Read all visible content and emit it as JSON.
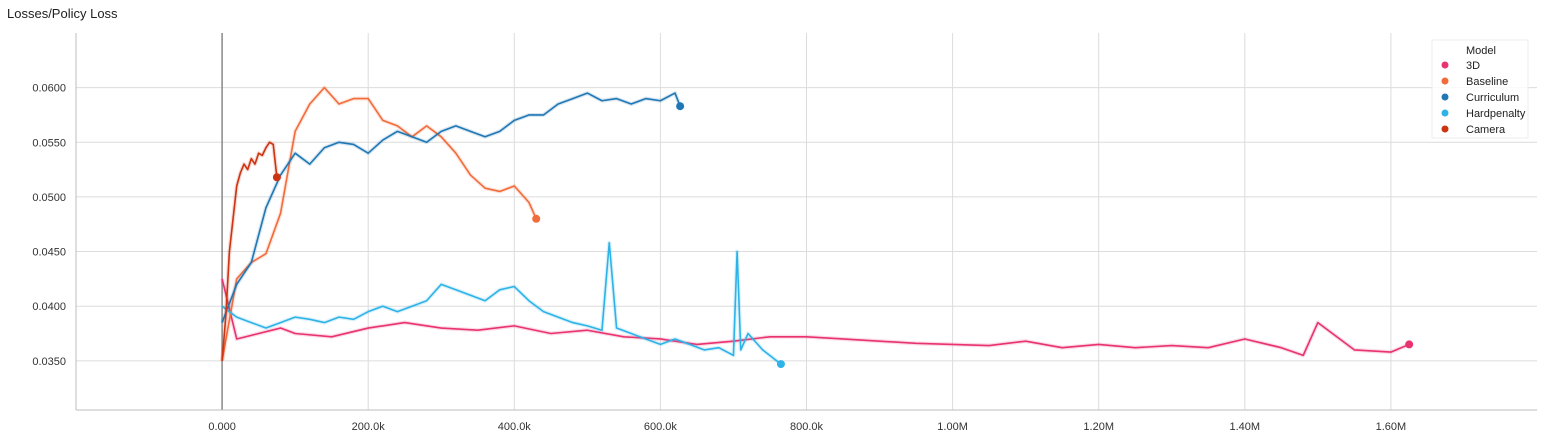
{
  "chart_data": {
    "type": "line",
    "title": "Losses/Policy Loss",
    "xlabel": "",
    "ylabel": "",
    "xlim": [
      -200000,
      1800000
    ],
    "ylim": [
      0.0305,
      0.065
    ],
    "grid": true,
    "legend": "top-right",
    "x_ticks": [
      0,
      200000,
      400000,
      600000,
      800000,
      1000000,
      1200000,
      1400000,
      1600000
    ],
    "x_tick_labels": [
      "0.000",
      "200.0k",
      "400.0k",
      "600.0k",
      "800.0k",
      "1.00M",
      "1.20M",
      "1.40M",
      "1.60M"
    ],
    "y_ticks": [
      0.035,
      0.04,
      0.045,
      0.05,
      0.055,
      0.06
    ],
    "y_tick_labels": [
      "0.0350",
      "0.0400",
      "0.0450",
      "0.0500",
      "0.0550",
      "0.0600"
    ],
    "legend_title": "Model",
    "series": [
      {
        "name": "3D",
        "color": "#e8336e",
        "x": [
          0,
          20000,
          50000,
          80000,
          100000,
          150000,
          200000,
          250000,
          300000,
          350000,
          400000,
          450000,
          500000,
          550000,
          600000,
          650000,
          700000,
          750000,
          800000,
          850000,
          900000,
          950000,
          1000000,
          1050000,
          1100000,
          1150000,
          1200000,
          1250000,
          1300000,
          1350000,
          1400000,
          1450000,
          1480000,
          1500000,
          1550000,
          1600000,
          1625000
        ],
        "y": [
          0.0425,
          0.037,
          0.0375,
          0.038,
          0.0375,
          0.0372,
          0.038,
          0.0385,
          0.038,
          0.0378,
          0.0382,
          0.0375,
          0.0378,
          0.0372,
          0.037,
          0.0365,
          0.0368,
          0.0372,
          0.0372,
          0.037,
          0.0368,
          0.0366,
          0.0365,
          0.0364,
          0.0368,
          0.0362,
          0.0365,
          0.0362,
          0.0364,
          0.0362,
          0.037,
          0.0362,
          0.0355,
          0.0385,
          0.036,
          0.0358,
          0.0365
        ]
      },
      {
        "name": "Baseline",
        "color": "#f26b3a",
        "x": [
          0,
          20000,
          40000,
          60000,
          80000,
          100000,
          120000,
          140000,
          160000,
          180000,
          200000,
          220000,
          240000,
          260000,
          280000,
          300000,
          320000,
          340000,
          360000,
          380000,
          400000,
          420000,
          430000
        ],
        "y": [
          0.035,
          0.0425,
          0.044,
          0.0448,
          0.0485,
          0.056,
          0.0585,
          0.06,
          0.0585,
          0.059,
          0.059,
          0.057,
          0.0565,
          0.0555,
          0.0565,
          0.0555,
          0.054,
          0.052,
          0.0508,
          0.0505,
          0.051,
          0.0495,
          0.048
        ]
      },
      {
        "name": "Curriculum",
        "color": "#1f77b4",
        "x": [
          0,
          20000,
          40000,
          60000,
          80000,
          100000,
          120000,
          140000,
          160000,
          180000,
          200000,
          220000,
          240000,
          260000,
          280000,
          300000,
          320000,
          340000,
          360000,
          380000,
          400000,
          420000,
          440000,
          460000,
          480000,
          500000,
          520000,
          540000,
          560000,
          580000,
          600000,
          620000,
          627000
        ],
        "y": [
          0.0385,
          0.042,
          0.044,
          0.049,
          0.052,
          0.054,
          0.053,
          0.0545,
          0.055,
          0.0548,
          0.054,
          0.0552,
          0.056,
          0.0555,
          0.055,
          0.056,
          0.0565,
          0.056,
          0.0555,
          0.056,
          0.057,
          0.0575,
          0.0575,
          0.0585,
          0.059,
          0.0595,
          0.0588,
          0.059,
          0.0585,
          0.059,
          0.0588,
          0.0595,
          0.0583
        ]
      },
      {
        "name": "Hardpenalty",
        "color": "#2db3e8",
        "x": [
          0,
          20000,
          40000,
          60000,
          80000,
          100000,
          120000,
          140000,
          160000,
          180000,
          200000,
          220000,
          240000,
          260000,
          280000,
          300000,
          320000,
          340000,
          360000,
          380000,
          400000,
          420000,
          440000,
          460000,
          480000,
          500000,
          520000,
          530000,
          540000,
          560000,
          580000,
          600000,
          620000,
          640000,
          660000,
          680000,
          700000,
          705000,
          710000,
          720000,
          740000,
          765000
        ],
        "y": [
          0.04,
          0.039,
          0.0385,
          0.038,
          0.0385,
          0.039,
          0.0388,
          0.0385,
          0.039,
          0.0388,
          0.0395,
          0.04,
          0.0395,
          0.04,
          0.0405,
          0.042,
          0.0415,
          0.041,
          0.0405,
          0.0415,
          0.0418,
          0.0405,
          0.0395,
          0.039,
          0.0385,
          0.0382,
          0.0378,
          0.0458,
          0.038,
          0.0375,
          0.037,
          0.0365,
          0.037,
          0.0365,
          0.036,
          0.0362,
          0.0355,
          0.045,
          0.036,
          0.0375,
          0.036,
          0.0347
        ]
      },
      {
        "name": "Camera",
        "color": "#cc3311",
        "x": [
          0,
          5000,
          10000,
          15000,
          20000,
          25000,
          30000,
          35000,
          40000,
          45000,
          50000,
          55000,
          60000,
          65000,
          70000,
          75000
        ],
        "y": [
          0.035,
          0.039,
          0.045,
          0.048,
          0.051,
          0.0522,
          0.053,
          0.0525,
          0.0535,
          0.053,
          0.054,
          0.0538,
          0.0545,
          0.055,
          0.0548,
          0.0518
        ]
      }
    ]
  }
}
